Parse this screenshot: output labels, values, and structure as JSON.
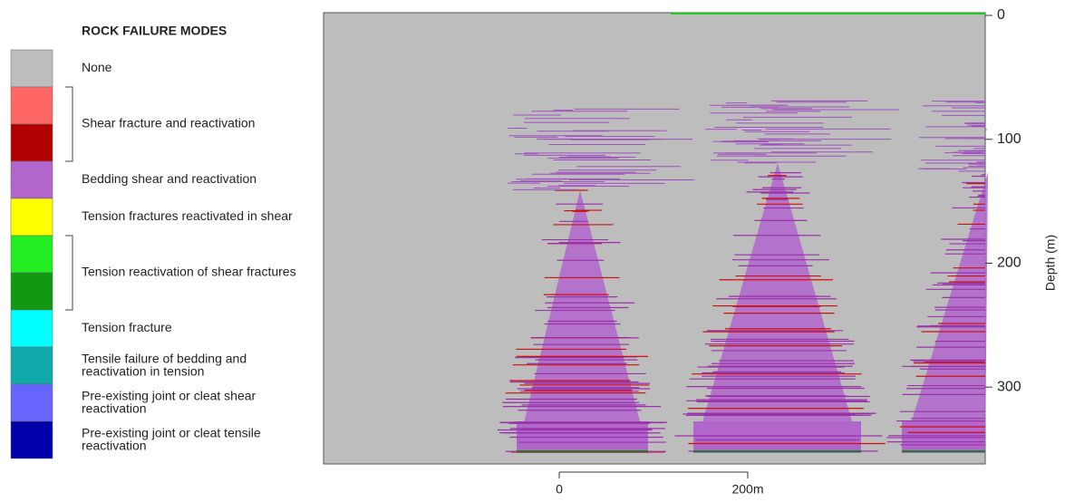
{
  "chart_data": {
    "type": "raster",
    "legend": {
      "title": "ROCK FAILURE MODES",
      "items": [
        {
          "label": "None",
          "colors": [
            "#bdbdbd"
          ]
        },
        {
          "label": "Shear fracture and reactivation",
          "colors": [
            "#ff6666",
            "#b00000"
          ]
        },
        {
          "label": "Bedding shear and reactivation",
          "colors": [
            "#b266cc"
          ]
        },
        {
          "label": "Tension fractures reactivated in shear",
          "colors": [
            "#ffff00"
          ]
        },
        {
          "label": "Tension reactivation of shear fractures",
          "colors": [
            "#22ee22",
            "#119911"
          ]
        },
        {
          "label": "Tension fracture",
          "colors": [
            "#00ffff"
          ]
        },
        {
          "label": "Tensile failure of bedding and reactivation in tension",
          "colors": [
            "#11aaaa"
          ]
        },
        {
          "label": "Pre-existing joint or cleat shear reactivation",
          "colors": [
            "#6666ff"
          ]
        },
        {
          "label": "Pre-existing joint or cleat tensile reactivation",
          "colors": [
            "#0000aa"
          ]
        }
      ]
    },
    "ylabel": "Depth (m)",
    "ylim": [
      0,
      362
    ],
    "yticks": [
      0,
      100,
      200,
      300
    ],
    "scale_bar": [
      "0",
      "200m"
    ]
  }
}
